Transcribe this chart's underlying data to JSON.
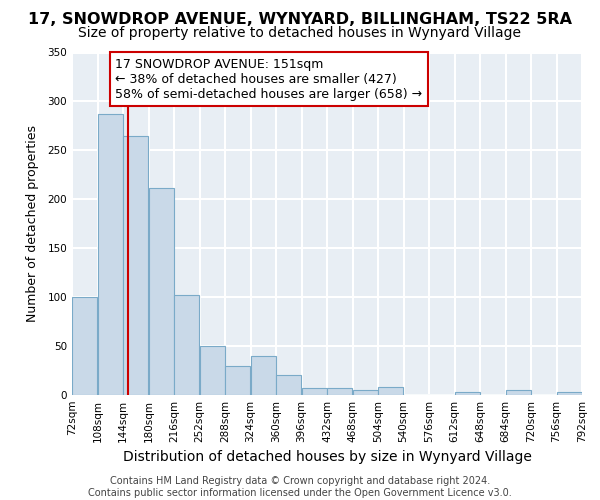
{
  "title": "17, SNOWDROP AVENUE, WYNYARD, BILLINGHAM, TS22 5RA",
  "subtitle": "Size of property relative to detached houses in Wynyard Village",
  "xlabel": "Distribution of detached houses by size in Wynyard Village",
  "ylabel": "Number of detached properties",
  "footer_lines": [
    "Contains HM Land Registry data © Crown copyright and database right 2024.",
    "Contains public sector information licensed under the Open Government Licence v3.0."
  ],
  "bin_edges": [
    72,
    108,
    144,
    180,
    216,
    252,
    288,
    324,
    360,
    396,
    432,
    468,
    504,
    540,
    576,
    612,
    648,
    684,
    720,
    756,
    792
  ],
  "bar_heights": [
    100,
    287,
    265,
    212,
    102,
    50,
    30,
    40,
    20,
    7,
    7,
    5,
    8,
    0,
    0,
    3,
    0,
    5,
    0,
    3
  ],
  "bar_facecolor": "#c9d9e8",
  "bar_edgecolor": "#7aaac8",
  "background_color": "#e8eef4",
  "grid_color": "#ffffff",
  "fig_background": "#ffffff",
  "vline_x": 151,
  "vline_color": "#cc0000",
  "annotation_lines": [
    "17 SNOWDROP AVENUE: 151sqm",
    "← 38% of detached houses are smaller (427)",
    "58% of semi-detached houses are larger (658) →"
  ],
  "ylim": [
    0,
    350
  ],
  "yticks": [
    0,
    50,
    100,
    150,
    200,
    250,
    300,
    350
  ],
  "title_fontsize": 11.5,
  "subtitle_fontsize": 10,
  "xlabel_fontsize": 10,
  "ylabel_fontsize": 9,
  "tick_fontsize": 7.5,
  "annotation_fontsize": 9,
  "footer_fontsize": 7
}
